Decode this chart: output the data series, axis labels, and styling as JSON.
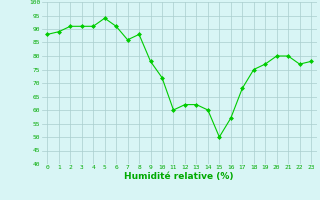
{
  "x": [
    0,
    1,
    2,
    3,
    4,
    5,
    6,
    7,
    8,
    9,
    10,
    11,
    12,
    13,
    14,
    15,
    16,
    17,
    18,
    19,
    20,
    21,
    22,
    23
  ],
  "y": [
    88,
    89,
    91,
    91,
    91,
    94,
    91,
    86,
    88,
    78,
    72,
    60,
    62,
    62,
    60,
    50,
    57,
    68,
    75,
    77,
    80,
    80,
    77,
    78
  ],
  "line_color": "#00cc00",
  "marker_color": "#00cc00",
  "bg_color": "#d8f5f5",
  "grid_color": "#aacece",
  "xlabel": "Humidité relative (%)",
  "xlabel_color": "#00aa00",
  "tick_color": "#00aa00",
  "ylim": [
    40,
    100
  ],
  "yticks": [
    40,
    45,
    50,
    55,
    60,
    65,
    70,
    75,
    80,
    85,
    90,
    95,
    100
  ],
  "xlim": [
    -0.5,
    23.5
  ]
}
